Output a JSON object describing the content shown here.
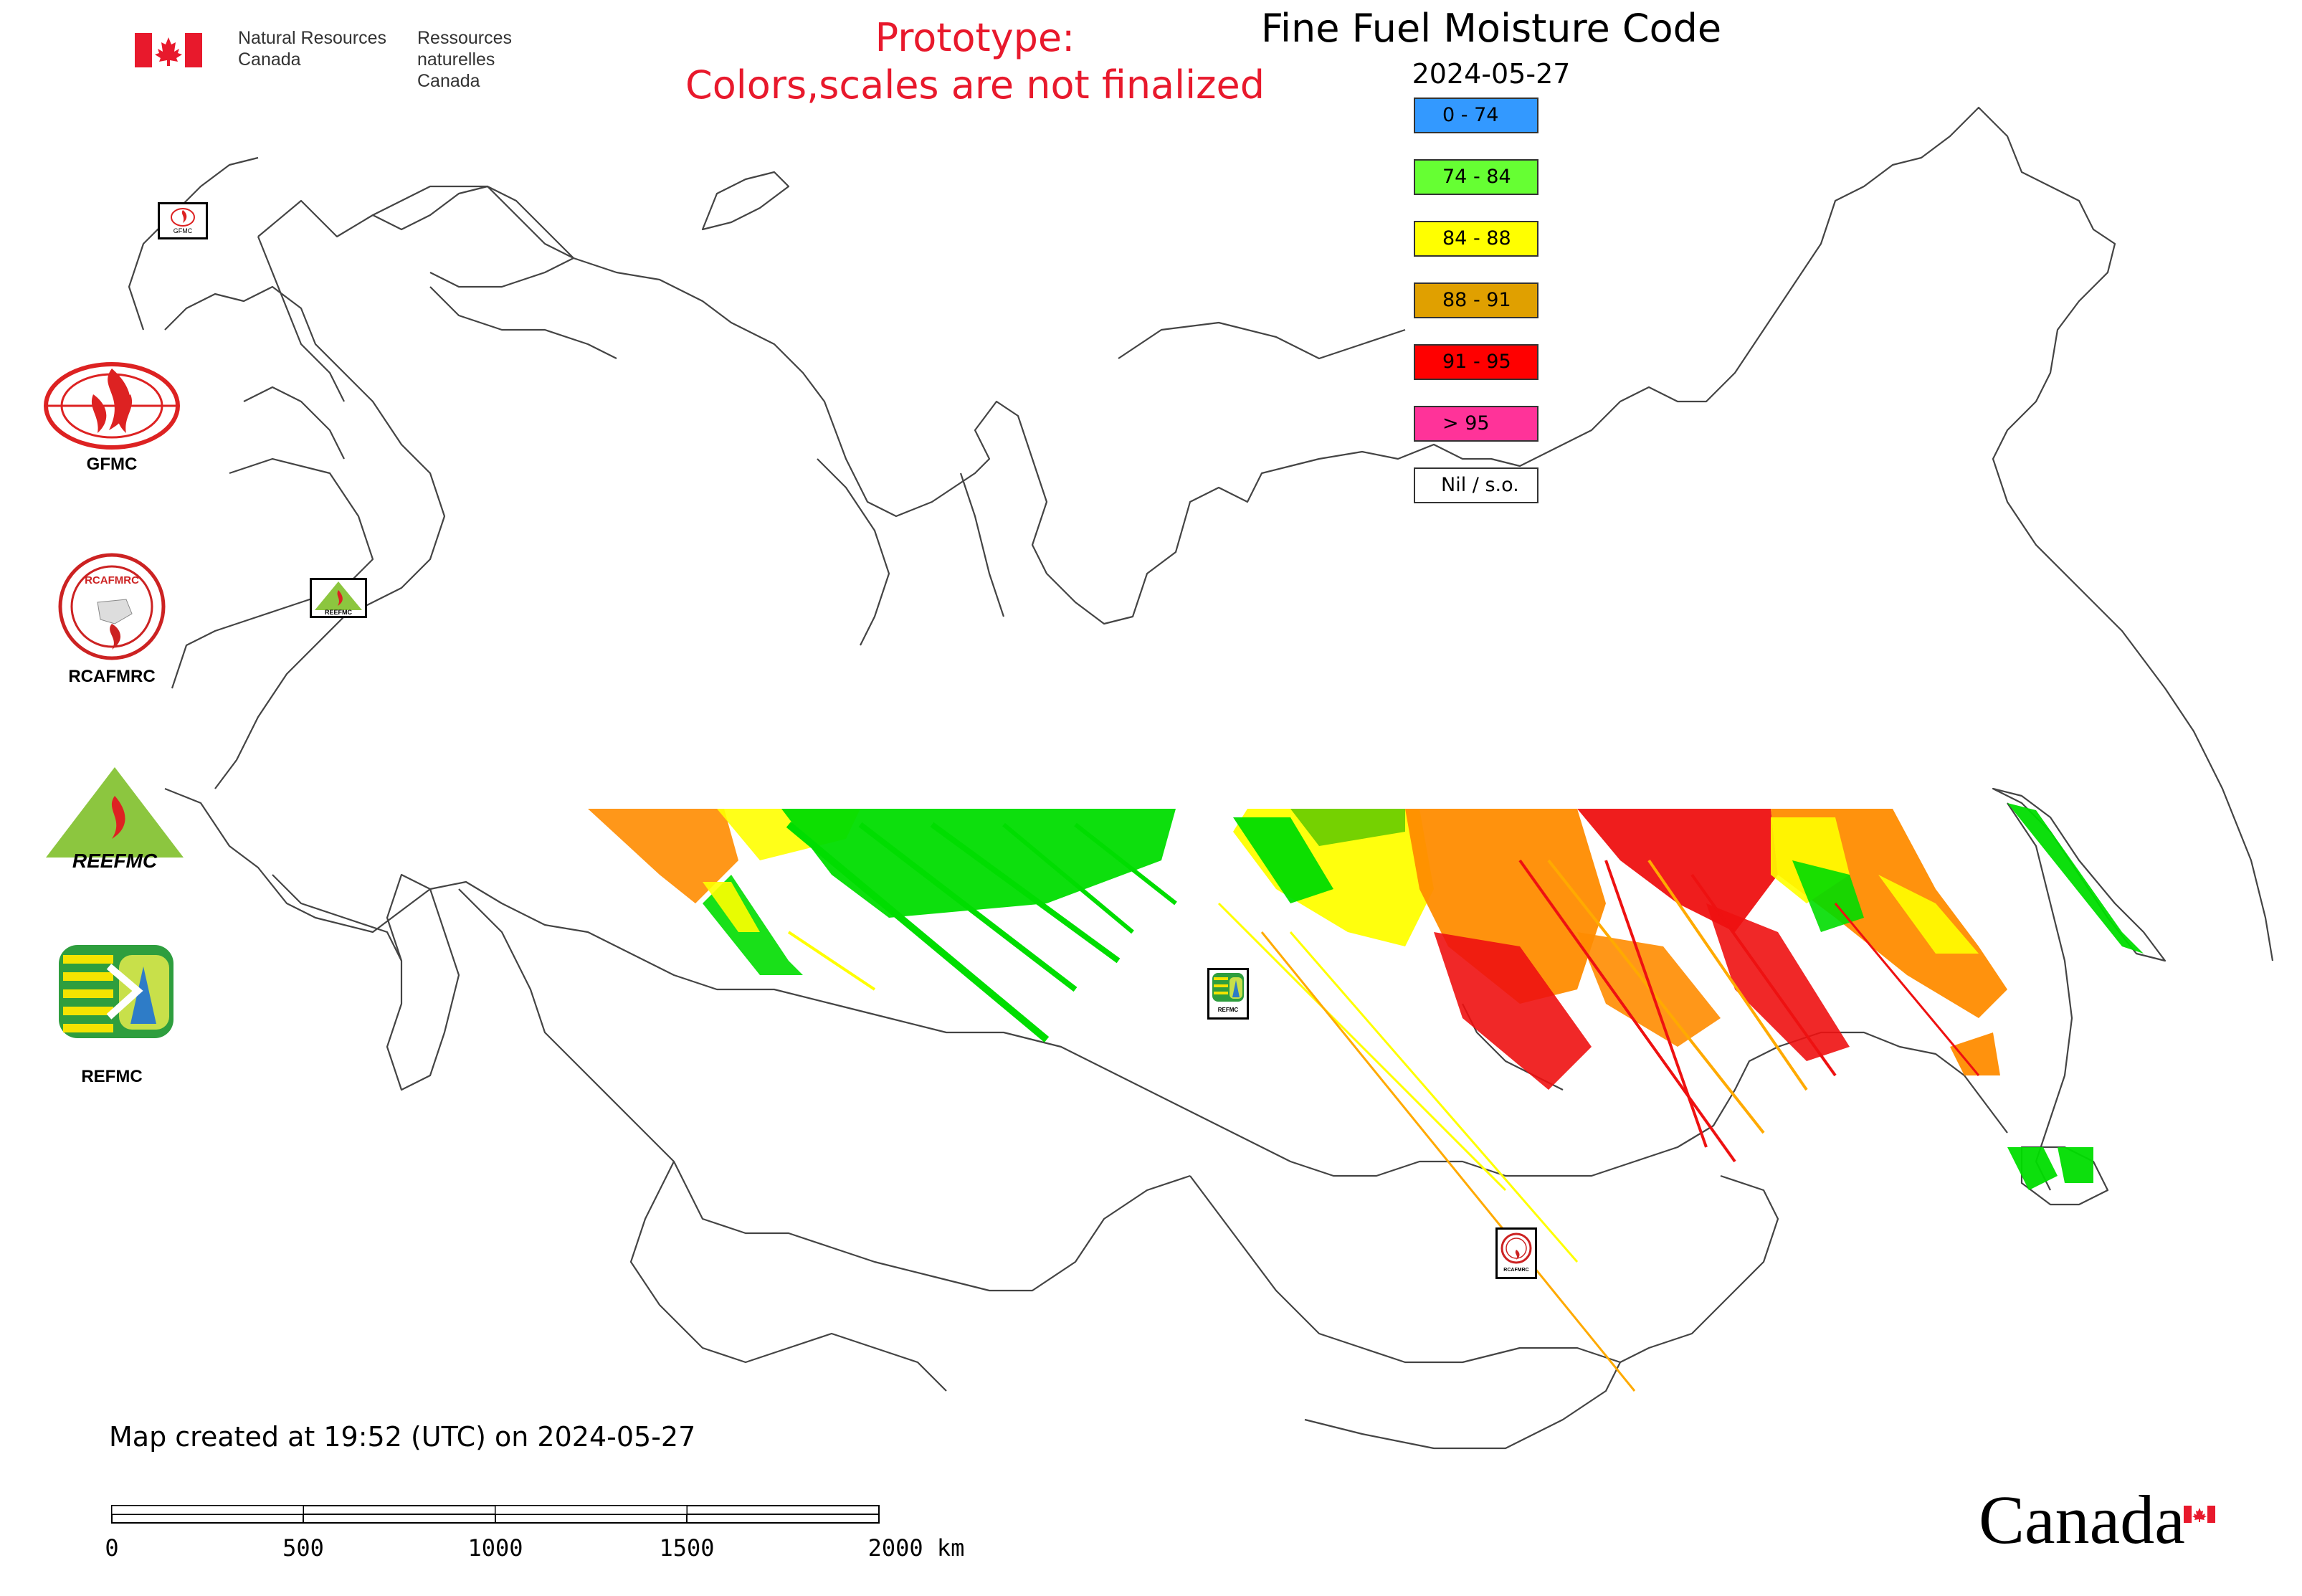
{
  "header": {
    "gov_en_line1": "Natural Resources",
    "gov_en_line2": "Canada",
    "gov_fr_line1": "Ressources naturelles",
    "gov_fr_line2": "Canada",
    "prototype_line1": "Prototype:",
    "prototype_line2": "Colors,scales are not finalized",
    "title": "Fine Fuel Moisture Code",
    "date": "2024-05-27"
  },
  "legend": {
    "items": [
      {
        "label": "0 - 74",
        "color": "#3399ff"
      },
      {
        "label": "74 - 84",
        "color": "#66ff33"
      },
      {
        "label": "84 - 88",
        "color": "#ffff00"
      },
      {
        "label": "88 - 91",
        "color": "#e0a000"
      },
      {
        "label": "91 - 95",
        "color": "#ff0000"
      },
      {
        "label": "> 95",
        "color": "#ff3399"
      },
      {
        "label": "Nil / s.o.",
        "color": "#ffffff"
      }
    ]
  },
  "logos": {
    "gfmc": "GFMC",
    "rcafmrc": "RCAFMRC",
    "reefmc": "REEFMC",
    "refmc": "REFMC",
    "gfmc_small": "GFMC",
    "rcafmrc_ring": "RCAFMRC",
    "reefmc_small": "REEFMC",
    "refmc_small": "REFMC",
    "rcafmrc_small": "RCAFMRC"
  },
  "footer": {
    "created": "Map created at 19:52 (UTC) on 2024-05-27",
    "scale_labels": [
      "0",
      "500",
      "1000",
      "1500",
      "2000 km"
    ],
    "wordmark": "Canada"
  },
  "colors": {
    "green": "#00e000",
    "light_green": "#66ff33",
    "yellow": "#ffff00",
    "orange": "#ff8c00",
    "red": "#ff0000",
    "prototype_red": "#e8192c"
  }
}
